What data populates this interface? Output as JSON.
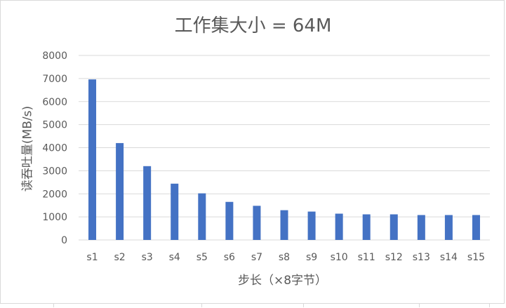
{
  "chart_data": {
    "type": "bar",
    "title": "工作集大小 = 64M",
    "xlabel": "步长（×8字节）",
    "ylabel": "读吞吐量(MB/s)",
    "ylim": [
      0,
      8000
    ],
    "yticks": [
      0,
      1000,
      2000,
      3000,
      4000,
      5000,
      6000,
      7000,
      8000
    ],
    "grid": true,
    "legend": "none",
    "categories": [
      "s1",
      "s2",
      "s3",
      "s4",
      "s5",
      "s6",
      "s7",
      "s8",
      "s9",
      "s10",
      "s11",
      "s12",
      "s13",
      "s14",
      "s15"
    ],
    "series": [
      {
        "values": [
          6960,
          4200,
          3200,
          2440,
          2020,
          1650,
          1480,
          1290,
          1230,
          1140,
          1110,
          1110,
          1080,
          1080,
          1080
        ]
      }
    ],
    "colors": {
      "bar": "#4472C4",
      "grid": "#d9d9d9",
      "text": "#595959"
    }
  }
}
